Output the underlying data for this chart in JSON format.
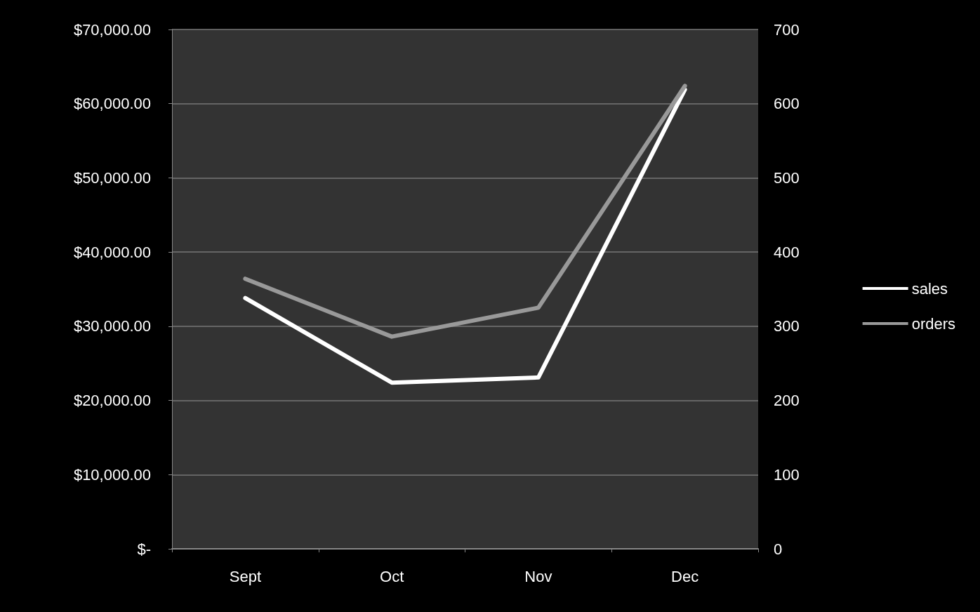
{
  "chart_data": {
    "type": "line",
    "categories": [
      "Sept",
      "Oct",
      "Nov",
      "Dec"
    ],
    "series": [
      {
        "name": "sales",
        "color": "#ffffff",
        "values": [
          33800,
          22400,
          23100,
          61900
        ]
      },
      {
        "name": "orders",
        "color": "#999999",
        "values": [
          364,
          286,
          325,
          624
        ],
        "axis": "y2"
      }
    ],
    "ylim": [
      0,
      70000
    ],
    "yticks": [
      {
        "value": 0,
        "label": "$-"
      },
      {
        "value": 10000,
        "label": "$10,000.00"
      },
      {
        "value": 20000,
        "label": "$20,000.00"
      },
      {
        "value": 30000,
        "label": "$30,000.00"
      },
      {
        "value": 40000,
        "label": "$40,000.00"
      },
      {
        "value": 50000,
        "label": "$50,000.00"
      },
      {
        "value": 60000,
        "label": "$60,000.00"
      },
      {
        "value": 70000,
        "label": "$70,000.00"
      }
    ],
    "y2lim": [
      0,
      700
    ],
    "y2ticks": [
      0,
      100,
      200,
      300,
      400,
      500,
      600,
      700
    ],
    "grid": "y",
    "legend": "right",
    "marker": "none",
    "line_style": "solid"
  }
}
